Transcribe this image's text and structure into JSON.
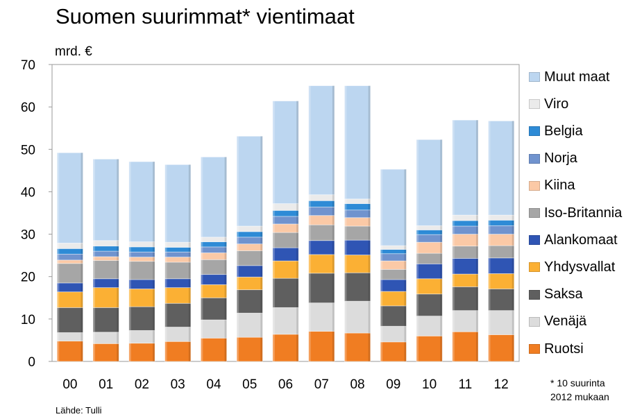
{
  "title": "Suomen suurimmat* vientimaat",
  "unit_label": "mrd. €",
  "footnote": [
    "* 10 suurinta",
    "2012 mukaan"
  ],
  "source": "Lähde: Tulli",
  "chart_data": {
    "type": "bar",
    "stacked": true,
    "title": "Suomen suurimmat* vientimaat",
    "ylabel": "mrd. €",
    "ylim": [
      0,
      70
    ],
    "yticks": [
      0,
      10,
      20,
      30,
      40,
      50,
      60,
      70
    ],
    "grid": false,
    "legend_position": "right",
    "categories": [
      "00",
      "01",
      "02",
      "03",
      "04",
      "05",
      "06",
      "07",
      "08",
      "09",
      "10",
      "11",
      "12"
    ],
    "series": [
      {
        "name": "Ruotsi",
        "color": "#f07d22",
        "values": [
          4.8,
          4.2,
          4.3,
          4.7,
          5.5,
          5.7,
          6.4,
          7.1,
          6.7,
          4.6,
          6.0,
          7.0,
          6.3
        ]
      },
      {
        "name": "Venäjä",
        "color": "#dcdcdc",
        "values": [
          2.0,
          2.7,
          3.0,
          3.4,
          4.3,
          5.7,
          6.3,
          6.7,
          7.5,
          3.7,
          4.7,
          5.0,
          5.7
        ]
      },
      {
        "name": "Saksa",
        "color": "#5f5f5f",
        "values": [
          5.9,
          5.8,
          5.6,
          5.6,
          5.2,
          5.5,
          6.9,
          7.0,
          6.7,
          4.8,
          5.2,
          5.6,
          5.1
        ]
      },
      {
        "name": "Yhdysvallat",
        "color": "#fbb034",
        "values": [
          3.7,
          4.7,
          4.2,
          3.7,
          3.1,
          3.0,
          4.1,
          4.4,
          4.2,
          3.4,
          3.6,
          3.0,
          3.6
        ]
      },
      {
        "name": "Alankomaat",
        "color": "#2f55b4",
        "values": [
          2.1,
          2.1,
          2.2,
          2.1,
          2.4,
          2.7,
          3.1,
          3.3,
          3.5,
          2.8,
          3.5,
          3.7,
          3.7
        ]
      },
      {
        "name": "Iso-Britannia",
        "color": "#a6a6a6",
        "values": [
          4.6,
          4.3,
          4.3,
          3.9,
          3.5,
          3.5,
          3.6,
          3.7,
          3.3,
          2.4,
          2.5,
          2.9,
          2.9
        ]
      },
      {
        "name": "Kiina",
        "color": "#fbc9a6",
        "values": [
          0.8,
          0.9,
          1.0,
          1.2,
          1.6,
          1.6,
          2.0,
          2.2,
          2.0,
          2.0,
          2.6,
          2.8,
          2.7
        ]
      },
      {
        "name": "Norja",
        "color": "#7093ce",
        "values": [
          1.4,
          1.3,
          1.2,
          1.2,
          1.4,
          1.6,
          1.8,
          2.0,
          1.8,
          1.7,
          1.8,
          1.9,
          2.0
        ]
      },
      {
        "name": "Belgia",
        "color": "#2e8bd6",
        "values": [
          1.3,
          1.2,
          1.2,
          1.1,
          1.2,
          1.3,
          1.4,
          1.5,
          1.5,
          1.0,
          1.1,
          1.3,
          1.3
        ]
      },
      {
        "name": "Viro",
        "color": "#ebebeb",
        "values": [
          1.3,
          1.3,
          1.2,
          1.2,
          1.1,
          1.3,
          1.6,
          1.4,
          1.1,
          0.9,
          1.0,
          1.3,
          1.2
        ]
      },
      {
        "name": "Muut maat",
        "color": "#bcd6f0",
        "values": [
          21.3,
          19.2,
          18.9,
          18.3,
          18.9,
          21.2,
          24.2,
          25.7,
          26.7,
          18.0,
          20.3,
          22.4,
          22.2
        ]
      }
    ]
  }
}
